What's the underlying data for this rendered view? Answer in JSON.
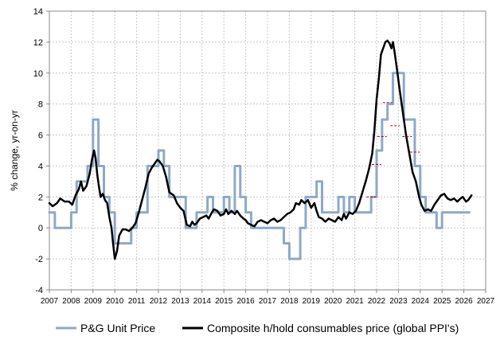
{
  "chart_data": {
    "type": "line",
    "title": "",
    "xlabel": "",
    "ylabel": "% change, yr-on-yr",
    "xlim": [
      2007,
      2027
    ],
    "ylim": [
      -4,
      14
    ],
    "y_ticks": [
      -4,
      -2,
      0,
      2,
      4,
      6,
      8,
      10,
      12,
      14
    ],
    "x_ticks": [
      2007,
      2008,
      2009,
      2010,
      2011,
      2012,
      2013,
      2014,
      2015,
      2016,
      2017,
      2018,
      2019,
      2020,
      2021,
      2022,
      2023,
      2024,
      2025,
      2026,
      2027
    ],
    "grid": true,
    "legend": "bottom",
    "series": [
      {
        "name": "P&G Unit Price",
        "color": "#8ea9c8",
        "style": "step",
        "points": [
          [
            2007.0,
            1
          ],
          [
            2007.25,
            0
          ],
          [
            2008.0,
            1
          ],
          [
            2008.25,
            3
          ],
          [
            2008.75,
            4
          ],
          [
            2009.0,
            7
          ],
          [
            2009.25,
            4
          ],
          [
            2009.5,
            2
          ],
          [
            2009.75,
            1
          ],
          [
            2010.0,
            -1
          ],
          [
            2010.25,
            -1
          ],
          [
            2010.75,
            0
          ],
          [
            2011.0,
            1
          ],
          [
            2011.5,
            4
          ],
          [
            2011.75,
            4
          ],
          [
            2012.0,
            5
          ],
          [
            2012.25,
            4
          ],
          [
            2012.5,
            2
          ],
          [
            2013.25,
            0
          ],
          [
            2013.75,
            1
          ],
          [
            2014.25,
            2
          ],
          [
            2014.5,
            1
          ],
          [
            2014.75,
            1
          ],
          [
            2015.0,
            2
          ],
          [
            2015.25,
            1
          ],
          [
            2015.5,
            4
          ],
          [
            2015.75,
            2
          ],
          [
            2016.0,
            1
          ],
          [
            2016.25,
            0
          ],
          [
            2016.5,
            0
          ],
          [
            2017.0,
            0
          ],
          [
            2017.75,
            -1
          ],
          [
            2018.0,
            -2
          ],
          [
            2018.5,
            0
          ],
          [
            2018.75,
            2
          ],
          [
            2019.0,
            2
          ],
          [
            2019.25,
            3
          ],
          [
            2019.5,
            1
          ],
          [
            2020.0,
            1
          ],
          [
            2020.25,
            2
          ],
          [
            2020.5,
            1
          ],
          [
            2020.75,
            2
          ],
          [
            2021.0,
            1
          ],
          [
            2021.25,
            1
          ],
          [
            2021.75,
            2
          ],
          [
            2022.0,
            5
          ],
          [
            2022.25,
            7
          ],
          [
            2022.5,
            8
          ],
          [
            2022.75,
            10
          ],
          [
            2023.25,
            7
          ],
          [
            2023.75,
            4
          ],
          [
            2024.0,
            2
          ],
          [
            2024.25,
            1
          ],
          [
            2024.75,
            0
          ],
          [
            2025.0,
            1
          ],
          [
            2026.25,
            1
          ]
        ]
      },
      {
        "name": "Composite h/hold consumables price (global PPI's)",
        "color": "#000000",
        "style": "line",
        "points": [
          [
            2007.0,
            1.6
          ],
          [
            2007.15,
            1.4
          ],
          [
            2007.35,
            1.6
          ],
          [
            2007.5,
            1.9
          ],
          [
            2007.7,
            1.7
          ],
          [
            2007.9,
            1.7
          ],
          [
            2008.05,
            1.5
          ],
          [
            2008.2,
            2.1
          ],
          [
            2008.35,
            2.5
          ],
          [
            2008.45,
            3.0
          ],
          [
            2008.55,
            2.4
          ],
          [
            2008.7,
            2.7
          ],
          [
            2008.85,
            3.5
          ],
          [
            2008.95,
            4.4
          ],
          [
            2009.05,
            5.0
          ],
          [
            2009.12,
            4.5
          ],
          [
            2009.2,
            3.4
          ],
          [
            2009.28,
            2.6
          ],
          [
            2009.35,
            2.0
          ],
          [
            2009.45,
            2.2
          ],
          [
            2009.55,
            1.8
          ],
          [
            2009.65,
            1.6
          ],
          [
            2009.75,
            0.7
          ],
          [
            2009.85,
            0.0
          ],
          [
            2009.92,
            -1.0
          ],
          [
            2010.0,
            -2.0
          ],
          [
            2010.1,
            -1.5
          ],
          [
            2010.2,
            -0.5
          ],
          [
            2010.35,
            -0.1
          ],
          [
            2010.5,
            -0.1
          ],
          [
            2010.65,
            -0.2
          ],
          [
            2010.8,
            0.0
          ],
          [
            2010.95,
            0.3
          ],
          [
            2011.1,
            1.0
          ],
          [
            2011.25,
            1.8
          ],
          [
            2011.4,
            2.6
          ],
          [
            2011.55,
            3.5
          ],
          [
            2011.7,
            3.9
          ],
          [
            2011.85,
            4.2
          ],
          [
            2011.95,
            4.4
          ],
          [
            2012.05,
            4.3
          ],
          [
            2012.2,
            4.0
          ],
          [
            2012.35,
            3.3
          ],
          [
            2012.5,
            2.3
          ],
          [
            2012.7,
            2.1
          ],
          [
            2012.85,
            1.6
          ],
          [
            2013.0,
            1.3
          ],
          [
            2013.15,
            1.1
          ],
          [
            2013.3,
            0.2
          ],
          [
            2013.45,
            0.1
          ],
          [
            2013.55,
            0.4
          ],
          [
            2013.65,
            0.2
          ],
          [
            2013.75,
            0.3
          ],
          [
            2013.9,
            0.6
          ],
          [
            2014.05,
            0.7
          ],
          [
            2014.2,
            0.8
          ],
          [
            2014.3,
            0.6
          ],
          [
            2014.45,
            1.0
          ],
          [
            2014.55,
            1.2
          ],
          [
            2014.7,
            1.1
          ],
          [
            2014.85,
            0.8
          ],
          [
            2015.0,
            0.9
          ],
          [
            2015.1,
            1.2
          ],
          [
            2015.2,
            0.9
          ],
          [
            2015.35,
            1.1
          ],
          [
            2015.5,
            0.9
          ],
          [
            2015.6,
            1.1
          ],
          [
            2015.75,
            0.8
          ],
          [
            2015.9,
            0.6
          ],
          [
            2016.0,
            0.5
          ],
          [
            2016.1,
            0.3
          ],
          [
            2016.25,
            0.2
          ],
          [
            2016.4,
            0.1
          ],
          [
            2016.55,
            0.4
          ],
          [
            2016.7,
            0.5
          ],
          [
            2016.85,
            0.4
          ],
          [
            2017.0,
            0.3
          ],
          [
            2017.15,
            0.5
          ],
          [
            2017.3,
            0.6
          ],
          [
            2017.45,
            0.4
          ],
          [
            2017.6,
            0.5
          ],
          [
            2017.75,
            0.7
          ],
          [
            2017.9,
            0.9
          ],
          [
            2018.05,
            1.0
          ],
          [
            2018.2,
            1.2
          ],
          [
            2018.3,
            1.6
          ],
          [
            2018.45,
            1.5
          ],
          [
            2018.55,
            1.8
          ],
          [
            2018.7,
            1.6
          ],
          [
            2018.85,
            1.8
          ],
          [
            2019.0,
            1.3
          ],
          [
            2019.15,
            1.6
          ],
          [
            2019.25,
            1.1
          ],
          [
            2019.35,
            0.7
          ],
          [
            2019.5,
            0.6
          ],
          [
            2019.65,
            0.4
          ],
          [
            2019.8,
            0.6
          ],
          [
            2019.95,
            0.5
          ],
          [
            2020.1,
            0.4
          ],
          [
            2020.25,
            0.7
          ],
          [
            2020.4,
            0.5
          ],
          [
            2020.5,
            0.9
          ],
          [
            2020.6,
            0.6
          ],
          [
            2020.75,
            1.0
          ],
          [
            2020.9,
            0.9
          ],
          [
            2021.05,
            1.1
          ],
          [
            2021.2,
            1.6
          ],
          [
            2021.35,
            2.3
          ],
          [
            2021.5,
            3.0
          ],
          [
            2021.65,
            3.8
          ],
          [
            2021.8,
            4.8
          ],
          [
            2021.9,
            6.3
          ],
          [
            2022.0,
            8.3
          ],
          [
            2022.1,
            9.6
          ],
          [
            2022.2,
            11.2
          ],
          [
            2022.3,
            11.6
          ],
          [
            2022.4,
            12.0
          ],
          [
            2022.5,
            12.1
          ],
          [
            2022.6,
            11.9
          ],
          [
            2022.68,
            11.6
          ],
          [
            2022.75,
            12.0
          ],
          [
            2022.82,
            11.4
          ],
          [
            2022.92,
            10.4
          ],
          [
            2023.05,
            9.0
          ],
          [
            2023.2,
            7.5
          ],
          [
            2023.35,
            6.0
          ],
          [
            2023.5,
            4.8
          ],
          [
            2023.65,
            3.6
          ],
          [
            2023.8,
            3.0
          ],
          [
            2023.95,
            2.0
          ],
          [
            2024.05,
            1.5
          ],
          [
            2024.2,
            1.1
          ],
          [
            2024.35,
            1.2
          ],
          [
            2024.5,
            1.1
          ],
          [
            2024.65,
            1.5
          ],
          [
            2024.8,
            1.8
          ],
          [
            2024.95,
            2.1
          ],
          [
            2025.1,
            2.2
          ],
          [
            2025.25,
            1.9
          ],
          [
            2025.4,
            1.8
          ],
          [
            2025.55,
            1.9
          ],
          [
            2025.7,
            1.7
          ],
          [
            2025.85,
            1.9
          ],
          [
            2025.95,
            2.0
          ],
          [
            2026.1,
            1.7
          ],
          [
            2026.2,
            1.8
          ],
          [
            2026.35,
            2.1
          ]
        ]
      }
    ],
    "annotations": [
      {
        "type": "dash",
        "color": "#cc0000",
        "x": 2021.75,
        "y": 2.0
      },
      {
        "type": "dash",
        "color": "#cc0000",
        "x": 2022.0,
        "y": 4.1
      },
      {
        "type": "dash",
        "color": "#cc0000",
        "x": 2022.25,
        "y": 5.9
      },
      {
        "type": "dash",
        "color": "#cc0000",
        "x": 2022.5,
        "y": 8.1
      },
      {
        "type": "dash",
        "color": "#cc0000",
        "x": 2022.85,
        "y": 6.6
      },
      {
        "type": "dash",
        "color": "#cc0000",
        "x": 2023.4,
        "y": 5.9
      },
      {
        "type": "dash",
        "color": "#cc0000",
        "x": 2023.75,
        "y": 4.9
      }
    ]
  },
  "legend": {
    "items": [
      {
        "label": "P&G Unit Price",
        "color": "#8ea9c8"
      },
      {
        "label": "Composite h/hold consumables price (global PPI's)",
        "color": "#000000"
      }
    ]
  }
}
